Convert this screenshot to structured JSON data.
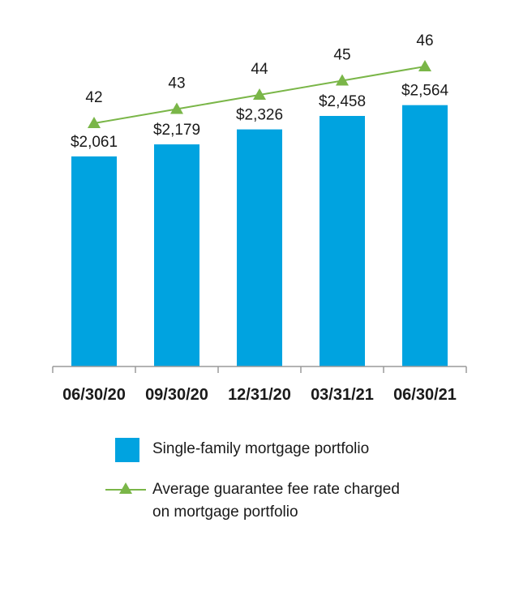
{
  "chart_data": {
    "type": "bar",
    "categories": [
      "06/30/20",
      "09/30/20",
      "12/31/20",
      "03/31/21",
      "06/30/21"
    ],
    "series": [
      {
        "name": "Single-family mortgage portfolio",
        "type": "bar",
        "values": [
          2061,
          2179,
          2326,
          2458,
          2564
        ],
        "labels": [
          "$2,061",
          "$2,179",
          "$2,326",
          "$2,458",
          "$2,564"
        ],
        "color": "#00a3e0"
      },
      {
        "name": "Average guarantee fee rate charged on mortgage portfolio",
        "type": "line",
        "values": [
          42,
          43,
          44,
          45,
          46
        ],
        "labels": [
          "42",
          "43",
          "44",
          "45",
          "46"
        ],
        "color": "#7ab648",
        "marker": "triangle"
      }
    ],
    "title": "",
    "xlabel": "",
    "ylabel": "",
    "ylim": [
      0,
      2800
    ],
    "grid": false,
    "legend_position": "bottom"
  },
  "legend": {
    "bar_label": "Single-family mortgage portfolio",
    "line_label_1": "Average guarantee fee rate charged",
    "line_label_2": "on mortgage portfolio"
  }
}
